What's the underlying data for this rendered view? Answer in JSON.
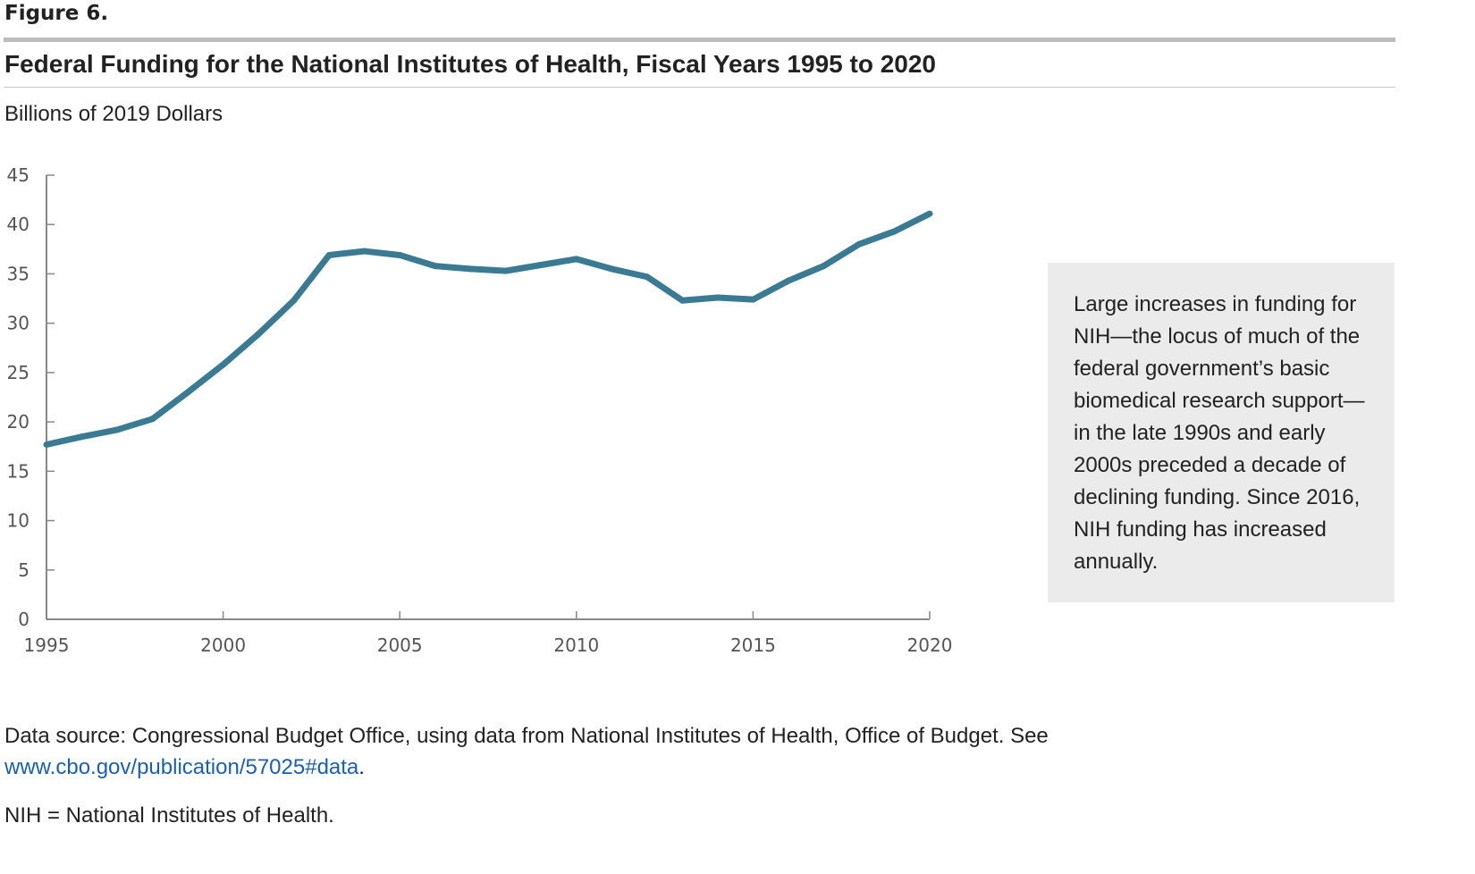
{
  "figure_label": "Figure 6.",
  "chart_data": {
    "type": "line",
    "title": "Federal Funding for the National Institutes of Health, Fiscal Years 1995 to 2020",
    "ylabel": "Billions of 2019 Dollars",
    "xlabel": "",
    "xlim": [
      1995,
      2020
    ],
    "ylim": [
      0,
      45
    ],
    "x_ticks": [
      "1995",
      "2000",
      "2005",
      "2010",
      "2015",
      "2020"
    ],
    "y_ticks": [
      "0",
      "5",
      "10",
      "15",
      "20",
      "25",
      "30",
      "35",
      "40",
      "45"
    ],
    "grid": false,
    "series": [
      {
        "name": "NIH funding",
        "color": "#3a7b93",
        "x": [
          1995,
          1996,
          1997,
          1998,
          1999,
          2000,
          2001,
          2002,
          2003,
          2004,
          2005,
          2006,
          2007,
          2008,
          2009,
          2010,
          2011,
          2012,
          2013,
          2014,
          2015,
          2016,
          2017,
          2018,
          2019,
          2020
        ],
        "values": [
          17.7,
          18.5,
          19.2,
          20.3,
          23.0,
          25.8,
          28.9,
          32.3,
          36.9,
          37.3,
          36.9,
          35.8,
          35.5,
          35.3,
          35.9,
          36.5,
          35.5,
          34.7,
          32.3,
          32.6,
          32.4,
          34.3,
          35.8,
          38.0,
          39.3,
          41.1
        ]
      }
    ]
  },
  "note": "Large increases in funding for NIH—the locus of much of the federal government’s basic biomedical research support—in the late 1990s and early 2000s preceded a decade of declining funding. Since 2016, NIH funding has increased annually.",
  "source": {
    "text": "Data source: Congressional Budget Office, using data from National Institutes of Health, Office of Budget. See ",
    "link": "www.cbo.gov/publication/57025#data",
    "end": "."
  },
  "abbreviation": "NIH = National Institutes of Health."
}
